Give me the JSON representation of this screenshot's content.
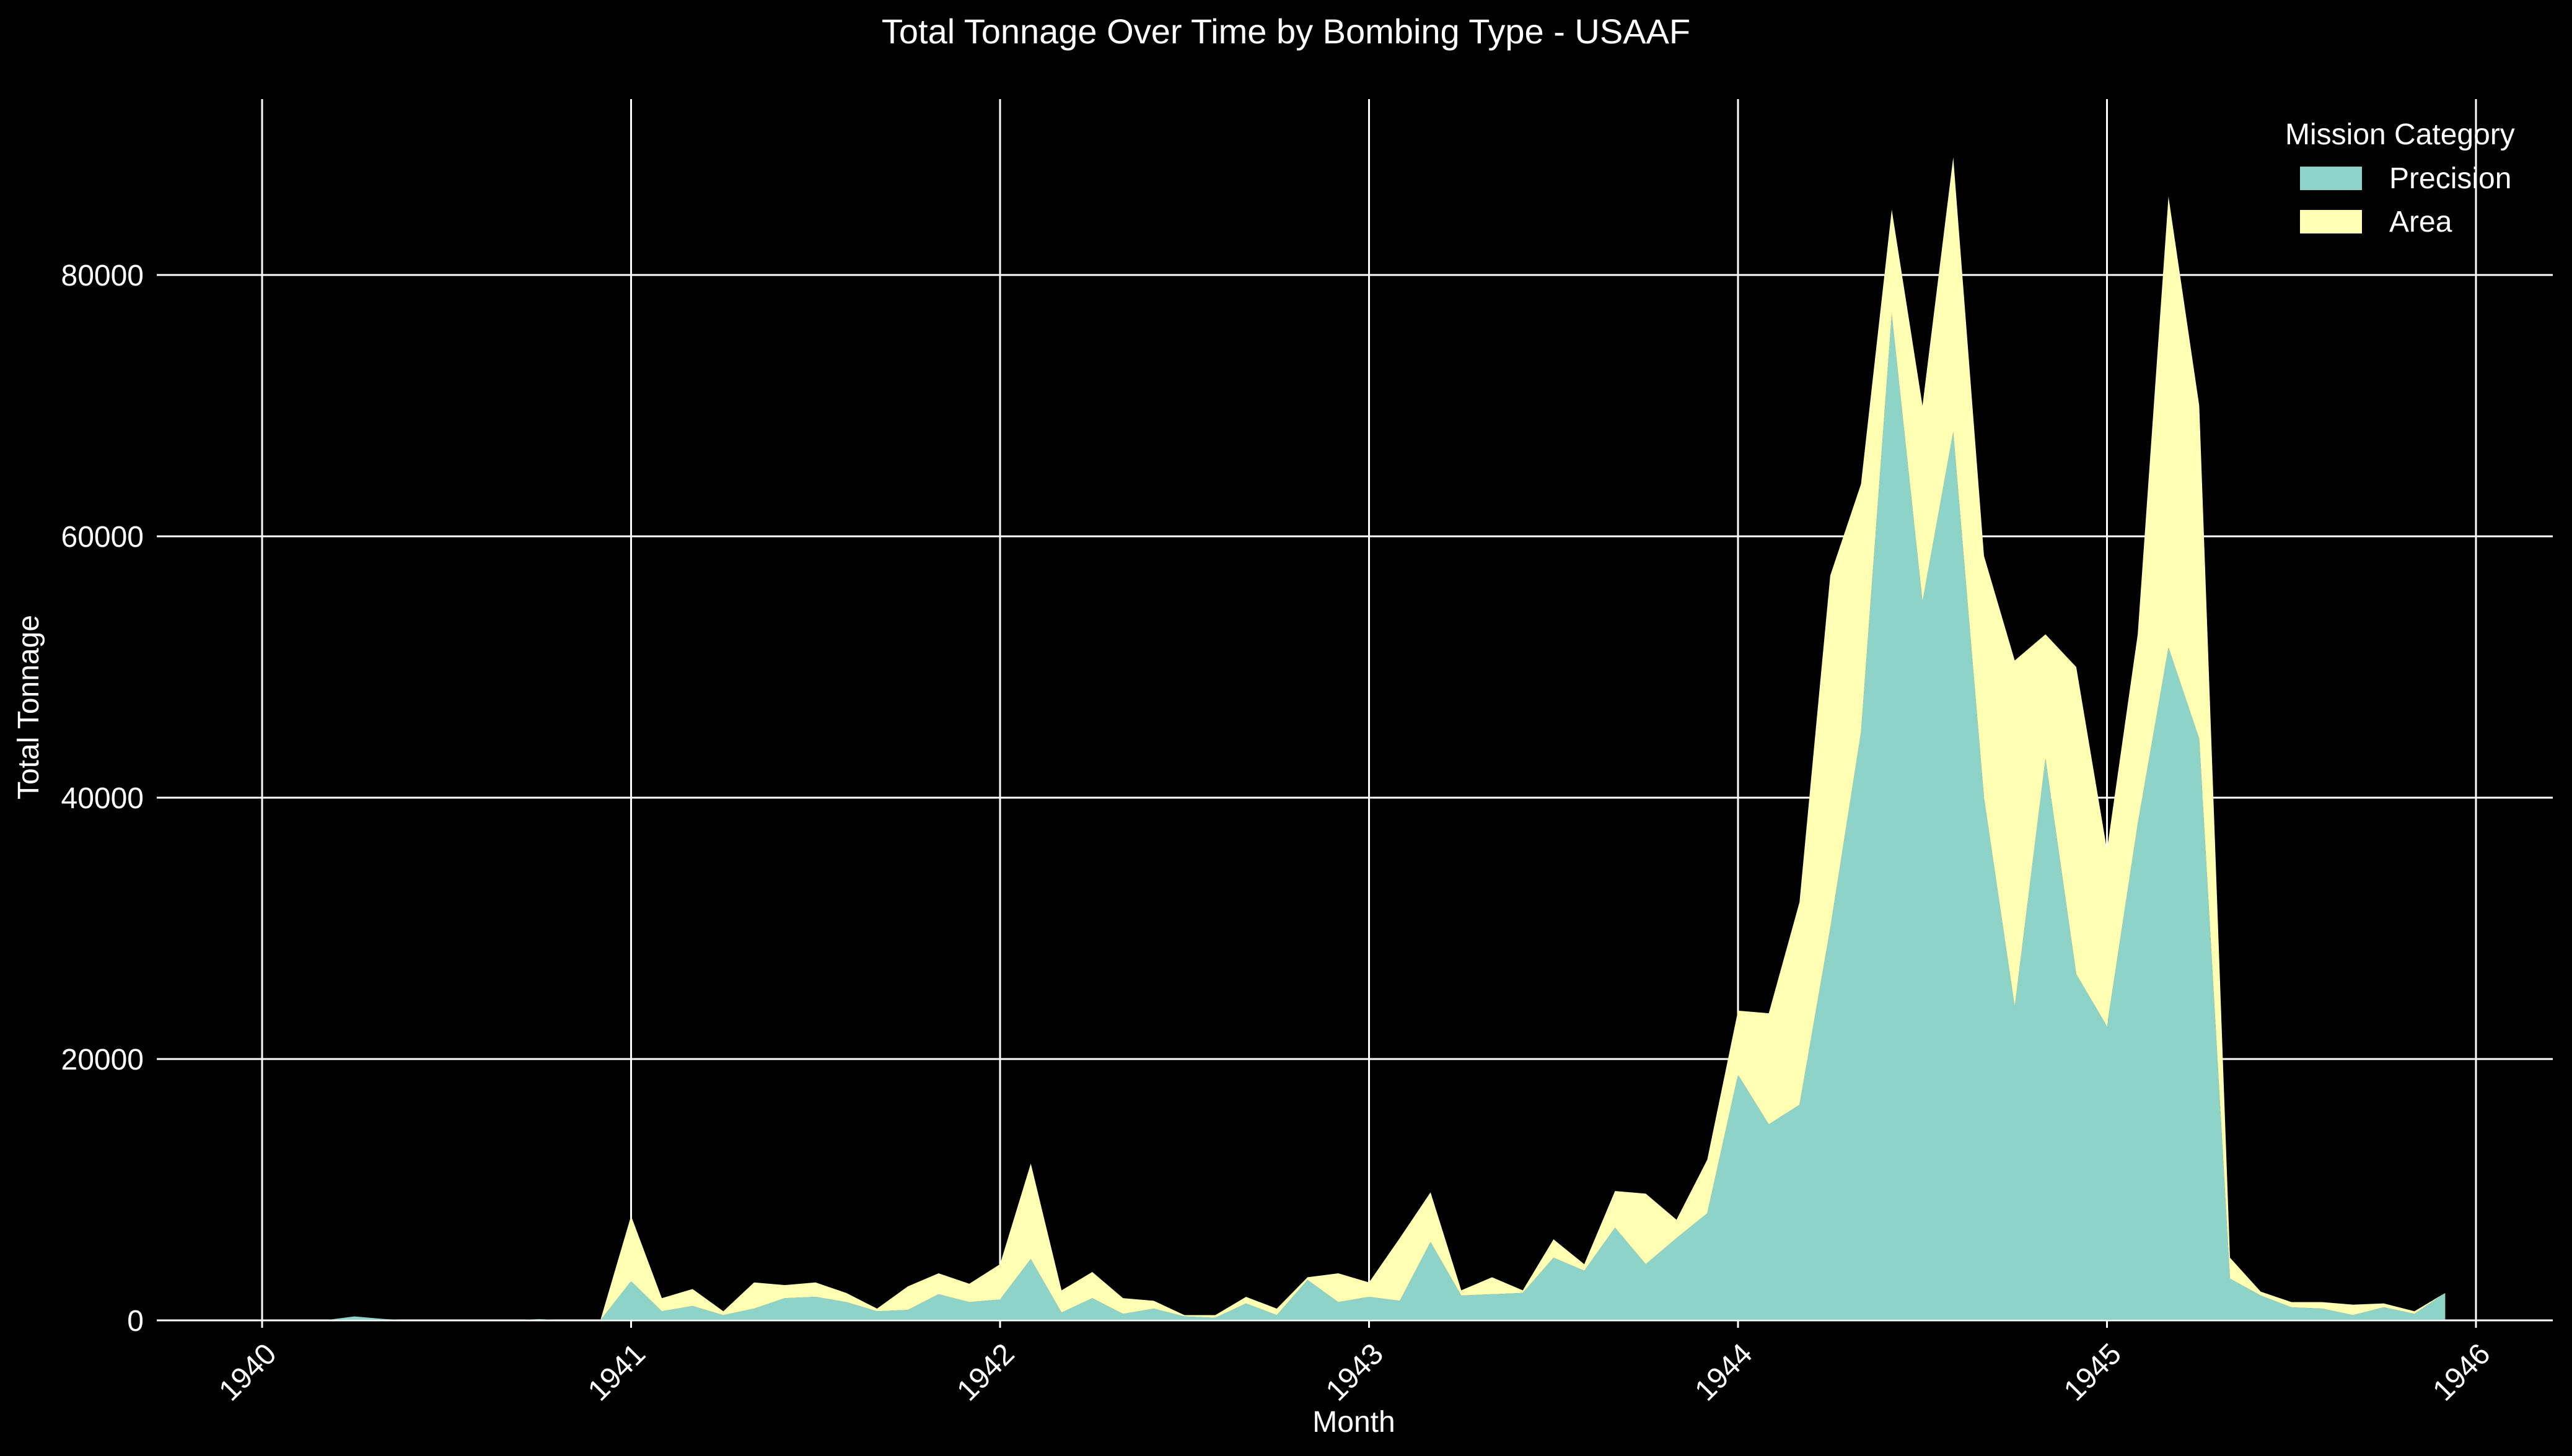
{
  "chart_data": {
    "type": "area",
    "stacked": true,
    "title": "Total Tonnage Over Time by Bombing Type - USAAF",
    "xlabel": "Month",
    "ylabel": "Total Tonnage",
    "x_ticks": [
      "1940",
      "1941",
      "1942",
      "1943",
      "1944",
      "1945",
      "1946"
    ],
    "y_ticks": [
      "0",
      "20000",
      "40000",
      "60000",
      "80000"
    ],
    "ylim": [
      0,
      95000
    ],
    "grid": true,
    "legend": {
      "title": "Mission Category",
      "placement": "top-right"
    },
    "x": [
      "1940-01",
      "1940-02",
      "1940-03",
      "1940-04",
      "1940-05",
      "1940-06",
      "1940-07",
      "1940-08",
      "1940-09",
      "1940-10",
      "1940-11",
      "1940-12",
      "1941-01",
      "1941-02",
      "1941-03",
      "1941-04",
      "1941-05",
      "1941-06",
      "1941-07",
      "1941-08",
      "1941-09",
      "1941-10",
      "1941-11",
      "1941-12",
      "1942-01",
      "1942-02",
      "1942-03",
      "1942-04",
      "1942-05",
      "1942-06",
      "1942-07",
      "1942-08",
      "1942-09",
      "1942-10",
      "1942-11",
      "1942-12",
      "1943-01",
      "1943-02",
      "1943-03",
      "1943-04",
      "1943-05",
      "1943-06",
      "1943-07",
      "1943-08",
      "1943-09",
      "1943-10",
      "1943-11",
      "1943-12",
      "1944-01",
      "1944-02",
      "1944-03",
      "1944-04",
      "1944-05",
      "1944-06",
      "1944-07",
      "1944-08",
      "1944-09",
      "1944-10",
      "1944-11",
      "1944-12",
      "1945-01",
      "1945-02",
      "1945-03",
      "1945-04",
      "1945-05",
      "1945-06",
      "1945-07",
      "1945-08",
      "1945-09",
      "1945-10",
      "1945-11",
      "1945-12"
    ],
    "series": [
      {
        "name": "Precision",
        "color": "#8dd3c7",
        "values": [
          0,
          0,
          0,
          300,
          100,
          0,
          0,
          0,
          0,
          100,
          0,
          0,
          3000,
          700,
          1100,
          400,
          900,
          1700,
          1800,
          1400,
          700,
          800,
          2000,
          1400,
          1600,
          4700,
          600,
          1700,
          500,
          900,
          300,
          200,
          1300,
          400,
          3100,
          1400,
          1800,
          1500,
          6000,
          1900,
          2000,
          2100,
          4800,
          3800,
          7100,
          4300,
          6300,
          8200,
          18800,
          15000,
          16500,
          30000,
          45000,
          77000,
          55000,
          68000,
          40000,
          24000,
          43000,
          26500,
          22500,
          38000,
          51500,
          44500,
          3200,
          1900,
          1000,
          900,
          400,
          1000,
          500,
          2100
        ]
      },
      {
        "name": "Area",
        "color": "#ffffb3",
        "values": [
          0,
          0,
          0,
          0,
          0,
          0,
          0,
          0,
          0,
          0,
          0,
          0,
          5000,
          1000,
          1300,
          300,
          2000,
          1000,
          1100,
          700,
          200,
          1800,
          1600,
          1400,
          2700,
          7300,
          1700,
          2000,
          1200,
          600,
          100,
          200,
          500,
          500,
          200,
          2200,
          1100,
          4800,
          3800,
          400,
          1300,
          200,
          1400,
          500,
          2800,
          5400,
          1400,
          4100,
          4900,
          8500,
          15500,
          27000,
          19000,
          8000,
          15000,
          21000,
          18500,
          26500,
          9500,
          23500,
          13500,
          14500,
          34500,
          25500,
          1600,
          300,
          400,
          500,
          800,
          300,
          200,
          0
        ]
      }
    ]
  }
}
